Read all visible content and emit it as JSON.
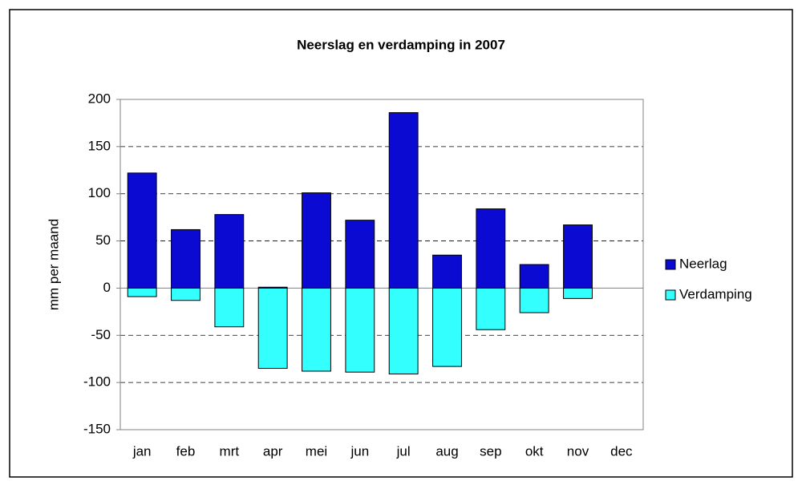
{
  "chart_data": {
    "type": "bar",
    "stacked": true,
    "title": "Neerslag en verdamping in 2007",
    "y_label": "mm per maand",
    "categories": [
      "jan",
      "feb",
      "mrt",
      "apr",
      "mei",
      "jun",
      "jul",
      "aug",
      "sep",
      "okt",
      "nov",
      "dec"
    ],
    "series": [
      {
        "name": "Neerlag",
        "color": "#0a0ad2",
        "values": [
          122,
          62,
          78,
          1,
          101,
          72,
          186,
          35,
          84,
          25,
          67,
          null
        ]
      },
      {
        "name": "Verdamping",
        "color": "#33ffff",
        "values": [
          -9,
          -13,
          -41,
          -85,
          -88,
          -89,
          -91,
          -83,
          -44,
          -26,
          -11,
          null
        ]
      }
    ],
    "ylim": [
      -150,
      200
    ],
    "yticks": [
      -150,
      -100,
      -50,
      0,
      50,
      100,
      150,
      200
    ],
    "grid": true,
    "legend": "right"
  }
}
